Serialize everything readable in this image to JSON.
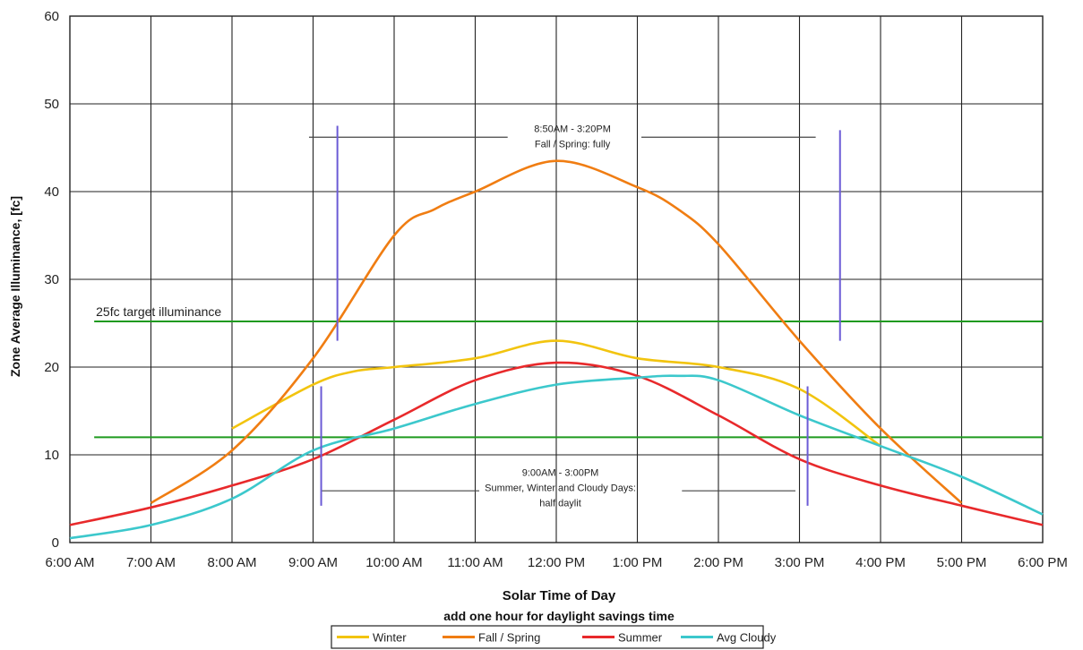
{
  "chart_data": {
    "type": "line",
    "title": "",
    "xlabel": "Solar Time of Day",
    "xlabel_sub": "add one hour for daylight savings time",
    "ylabel": "Zone Average Illuminance, [fc]",
    "ylim": [
      0,
      60
    ],
    "y_ticks": [
      "0",
      "10",
      "20",
      "30",
      "40",
      "50",
      "60"
    ],
    "x_ticks": [
      "6:00 AM",
      "7:00 AM",
      "8:00 AM",
      "9:00 AM",
      "10:00 AM",
      "11:00 AM",
      "12:00 PM",
      "1:00 PM",
      "2:00 PM",
      "3:00 PM",
      "4:00 PM",
      "5:00 PM",
      "6:00 PM"
    ],
    "grid": true,
    "legend_position": "bottom",
    "series": [
      {
        "name": "Winter",
        "color": "#f2c40f",
        "x": [
          8,
          9,
          9.5,
          10,
          11,
          12,
          13,
          14,
          15,
          16
        ],
        "y": [
          13,
          18,
          19.5,
          20,
          21,
          23,
          21,
          20,
          17.5,
          11
        ]
      },
      {
        "name": "Fall / Spring",
        "color": "#f07d12",
        "x": [
          7,
          8,
          9,
          10,
          10.5,
          11,
          12,
          13,
          13.5,
          14,
          15,
          16,
          17
        ],
        "y": [
          4.5,
          10.5,
          21,
          35,
          38,
          40,
          43.5,
          40.5,
          38,
          34,
          23,
          13,
          4.5
        ]
      },
      {
        "name": "Summer",
        "color": "#e8292b",
        "x": [
          6,
          7,
          8,
          9,
          10,
          11,
          12,
          13,
          14,
          15,
          16,
          17,
          18
        ],
        "y": [
          2,
          4,
          6.5,
          9.5,
          14,
          18.5,
          20.5,
          19,
          14.5,
          9.5,
          6.5,
          4.2,
          2
        ]
      },
      {
        "name": "Avg Cloudy",
        "color": "#3cc8cc",
        "x": [
          6,
          7,
          8,
          9,
          10,
          11,
          12,
          13,
          13.5,
          14,
          15,
          16,
          17,
          18
        ],
        "y": [
          0.5,
          2,
          5,
          10.5,
          13,
          15.8,
          18,
          18.8,
          19,
          18.5,
          14.5,
          11,
          7.5,
          3.2
        ]
      }
    ],
    "reference_lines": [
      {
        "y": 25.2,
        "color": "#1f9a1f",
        "label": "25fc target illuminance"
      },
      {
        "y": 12,
        "color": "#1f9a1f",
        "label": ""
      }
    ],
    "annotations": [
      {
        "lines": [
          "8:50AM - 3:20PM",
          "Fall / Spring: fully"
        ]
      },
      {
        "lines": [
          "9:00AM - 3:00PM",
          "Summer, Winter and Cloudy Days:",
          "half daylit"
        ]
      }
    ],
    "marker_color": "#6b5bd6",
    "bracket_color": "#444444"
  }
}
